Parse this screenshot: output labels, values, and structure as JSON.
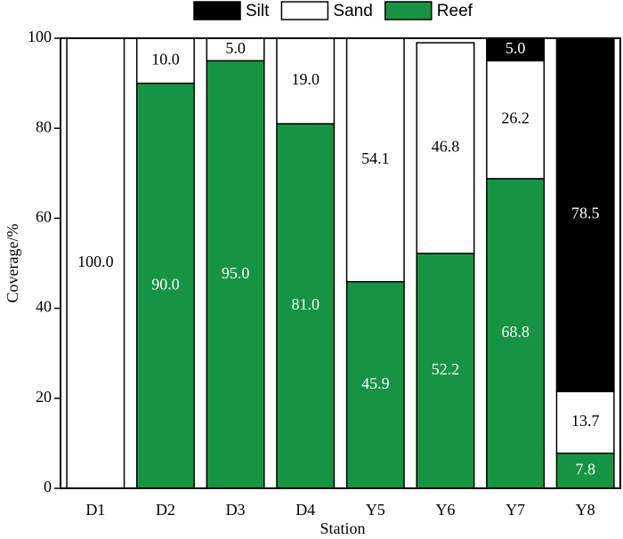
{
  "chart_data": {
    "type": "stacked_bar",
    "x_label": "Station",
    "y_label": "Coverage/%",
    "categories": [
      "D1",
      "D2",
      "D3",
      "D4",
      "Y5",
      "Y6",
      "Y7",
      "Y8"
    ],
    "series": [
      {
        "name": "Reef",
        "color": "#169443",
        "values": [
          0,
          90,
          95,
          81,
          45.9,
          52.2,
          68.8,
          7.8
        ],
        "value_labels": [
          null,
          "90.0",
          "95.0",
          "81.0",
          "45.9",
          "52.2",
          "68.8",
          "7.8"
        ]
      },
      {
        "name": "Sand",
        "color": "#ffffff",
        "values": [
          100,
          10,
          5,
          19,
          54.1,
          46.8,
          26.2,
          13.7
        ],
        "value_labels": [
          "100.0",
          "10.0",
          "5.0",
          "19.0",
          "54.1",
          "46.8",
          "26.2",
          "13.7"
        ]
      },
      {
        "name": "Silt",
        "color": "#000000",
        "values": [
          0,
          0,
          0,
          0,
          0,
          0,
          5,
          78.5
        ],
        "value_labels": [
          null,
          null,
          null,
          null,
          null,
          null,
          "5.0",
          "78.5"
        ]
      }
    ],
    "ylim": [
      0,
      100
    ],
    "yticks": [
      0,
      20,
      40,
      60,
      80,
      100
    ]
  }
}
